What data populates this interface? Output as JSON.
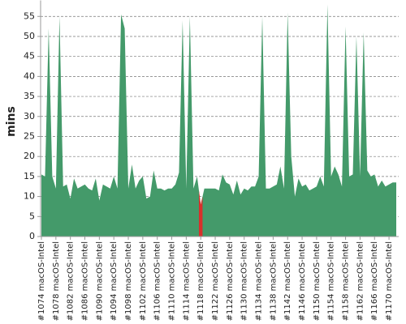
{
  "chart_data": {
    "type": "area",
    "y_label": "mins",
    "categories": [
      "#1074 macOS-Intel",
      null,
      null,
      null,
      "#1078 macOS-Intel",
      null,
      null,
      null,
      "#1082 macOS-Intel",
      null,
      null,
      null,
      "#1086 macOS-Intel",
      null,
      null,
      null,
      "#1090 macOS-Intel",
      null,
      null,
      null,
      "#1094 macOS-Intel",
      null,
      null,
      null,
      "#1098 macOS-Intel",
      null,
      null,
      null,
      "#1102 macOS-Intel",
      null,
      null,
      null,
      "#1106 macOS-Intel",
      null,
      null,
      null,
      "#1110 macOS-Intel",
      null,
      null,
      null,
      "#1114 macOS-Intel",
      null,
      null,
      null,
      "#1118 macOS-Intel",
      null,
      null,
      null,
      "#1122 macOS-Intel",
      null,
      null,
      null,
      "#1126 macOS-Intel",
      null,
      null,
      null,
      "#1130 macOS-Intel",
      null,
      null,
      null,
      "#1134 macOS-Intel",
      null,
      null,
      null,
      "#1138 macOS-Intel",
      null,
      null,
      null,
      "#1142 macOS-Intel",
      null,
      null,
      null,
      "#1146 macOS-Intel",
      null,
      null,
      null,
      "#1150 macOS-Intel",
      null,
      null,
      null,
      "#1154 macOS-Intel",
      null,
      null,
      null,
      "#1158 macOS-Intel",
      null,
      null,
      null,
      "#1162 macOS-Intel",
      null,
      null,
      null,
      "#1166 macOS-Intel",
      null,
      null,
      null,
      "#1170 macOS-Intel",
      null,
      null
    ],
    "values": [
      15.5,
      15,
      52,
      15,
      12,
      55,
      12.5,
      13,
      9.5,
      14.5,
      12,
      12.5,
      13,
      12,
      11.5,
      14.5,
      9,
      13,
      12.5,
      12,
      15,
      12,
      55.5,
      52,
      12,
      18,
      12,
      14,
      15,
      9.5,
      10,
      16.5,
      12,
      12,
      11.5,
      12,
      12,
      13,
      16,
      54,
      12,
      55,
      12,
      15,
      8,
      12,
      12,
      12,
      12,
      11.5,
      15.5,
      13.5,
      13,
      10.5,
      14,
      10.5,
      12,
      11.5,
      12.5,
      12.5,
      15,
      55,
      12,
      12,
      12.5,
      13,
      17.5,
      12,
      56,
      20,
      10,
      14.5,
      12.5,
      13,
      11.5,
      12,
      12.5,
      15,
      12.5,
      58,
      15,
      17.5,
      15.5,
      12.5,
      52.5,
      15,
      15.5,
      50,
      15,
      51,
      16.5,
      15,
      15.5,
      12.5,
      14,
      12.5,
      13,
      13.5,
      13.5
    ],
    "color": "#449a6a",
    "highlight": {
      "index": 44,
      "color": "#d8302b"
    },
    "ylim": [
      0,
      59
    ],
    "yticks": [
      0,
      5,
      10,
      15,
      20,
      25,
      30,
      35,
      40,
      45,
      50,
      55
    ],
    "grid": true
  }
}
